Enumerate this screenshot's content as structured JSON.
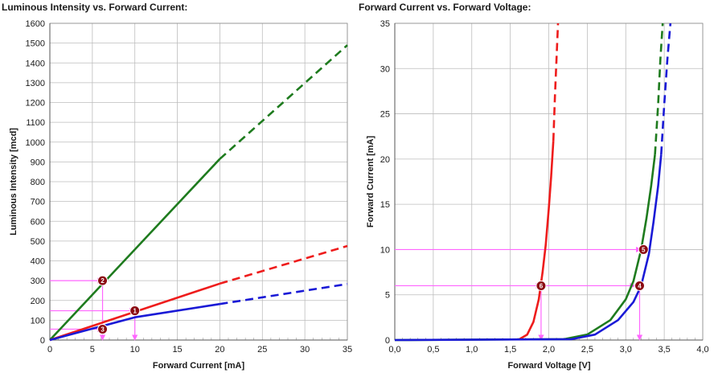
{
  "colors": {
    "green": "#1e7b1e",
    "red": "#ee1c1c",
    "blue": "#1a1ad6",
    "guide": "#ff66ff",
    "marker": "#8b0a12",
    "grid": "#bdbdbd"
  },
  "chart_data": [
    {
      "type": "line",
      "title": "Luminous Intensity vs. Forward Current:",
      "xlabel": "Forward Current [mA]",
      "ylabel": "Luminous Intensity [mcd]",
      "xlim": [
        0,
        35
      ],
      "ylim": [
        0,
        1600
      ],
      "xticks": [
        0,
        5,
        10,
        15,
        20,
        25,
        30,
        35
      ],
      "xtick_labels": [
        "0",
        "5",
        "10",
        "15",
        "20",
        "25",
        "30",
        "35"
      ],
      "yticks": [
        0,
        100,
        200,
        300,
        400,
        500,
        600,
        700,
        800,
        900,
        1000,
        1100,
        1200,
        1300,
        1400,
        1500,
        1600
      ],
      "ytick_labels": [
        "0",
        "100",
        "200",
        "300",
        "400",
        "500",
        "600",
        "700",
        "800",
        "900",
        "1000",
        "1100",
        "1200",
        "1300",
        "1400",
        "1500",
        "1600"
      ],
      "grid": true,
      "series": [
        {
          "color": "green",
          "solid": [
            [
              0,
              0
            ],
            [
              20,
              915
            ]
          ],
          "dashed": [
            [
              20,
              915
            ],
            [
              35,
              1490
            ]
          ]
        },
        {
          "color": "red",
          "solid": [
            [
              0,
              0
            ],
            [
              20,
              285
            ]
          ],
          "dashed": [
            [
              20,
              285
            ],
            [
              35,
              475
            ]
          ]
        },
        {
          "color": "blue",
          "solid": [
            [
              0,
              0
            ],
            [
              10,
              115
            ],
            [
              20,
              182
            ]
          ],
          "dashed": [
            [
              20,
              182
            ],
            [
              35,
              283
            ]
          ]
        }
      ],
      "guides": [
        {
          "from": [
            0,
            300
          ],
          "to": [
            6.2,
            300
          ],
          "arrow": true
        },
        {
          "from": [
            6.2,
            300
          ],
          "to": [
            6.2,
            0
          ],
          "arrow": true
        },
        {
          "from": [
            0,
            148
          ],
          "to": [
            10,
            148
          ],
          "arrow": true
        },
        {
          "from": [
            10,
            148
          ],
          "to": [
            10,
            0
          ],
          "arrow": true
        },
        {
          "from": [
            0,
            55
          ],
          "to": [
            6.2,
            55
          ],
          "arrow": true
        }
      ],
      "markers": [
        {
          "label": "1",
          "x": 10,
          "y": 148
        },
        {
          "label": "2",
          "x": 6.2,
          "y": 300
        },
        {
          "label": "3",
          "x": 6.2,
          "y": 55
        }
      ]
    },
    {
      "type": "line",
      "title": "Forward Current vs. Forward Voltage:",
      "xlabel": "Forward Voltage [V]",
      "ylabel": "Forward Current [mA]",
      "xlim": [
        0,
        4
      ],
      "ylim": [
        0,
        35
      ],
      "xticks": [
        0,
        0.5,
        1,
        1.5,
        2,
        2.5,
        3,
        3.5,
        4
      ],
      "xtick_labels": [
        "0,0",
        "0,5",
        "1,0",
        "1,5",
        "2,0",
        "2,5",
        "3,0",
        "3,5",
        "4,0"
      ],
      "yticks": [
        0,
        5,
        10,
        15,
        20,
        25,
        30,
        35
      ],
      "ytick_labels": [
        "0",
        "5",
        "10",
        "15",
        "20",
        "25",
        "30",
        "35"
      ],
      "grid": true,
      "series": [
        {
          "color": "red",
          "solid": [
            [
              1.62,
              0.1
            ],
            [
              1.72,
              0.6
            ],
            [
              1.8,
              2
            ],
            [
              1.87,
              4.5
            ],
            [
              1.92,
              7.5
            ],
            [
              1.96,
              10.5
            ],
            [
              2.0,
              14.5
            ],
            [
              2.03,
              18
            ],
            [
              2.06,
              22
            ]
          ],
          "dashed": [
            [
              2.06,
              22
            ],
            [
              2.08,
              27
            ],
            [
              2.1,
              31
            ],
            [
              2.12,
              35
            ]
          ]
        },
        {
          "color": "green",
          "solid": [
            [
              0,
              0
            ],
            [
              2.2,
              0.1
            ],
            [
              2.5,
              0.6
            ],
            [
              2.8,
              2.2
            ],
            [
              3.0,
              4.5
            ],
            [
              3.1,
              6.5
            ],
            [
              3.2,
              10
            ],
            [
              3.27,
              13.5
            ],
            [
              3.33,
              17
            ],
            [
              3.38,
              20.5
            ]
          ],
          "dashed": [
            [
              3.38,
              20.5
            ],
            [
              3.42,
              26
            ],
            [
              3.45,
              31
            ],
            [
              3.48,
              35
            ]
          ]
        },
        {
          "color": "blue",
          "solid": [
            [
              0,
              0
            ],
            [
              2.3,
              0.1
            ],
            [
              2.6,
              0.6
            ],
            [
              2.9,
              2.2
            ],
            [
              3.1,
              4.2
            ],
            [
              3.2,
              6
            ],
            [
              3.3,
              9.5
            ],
            [
              3.36,
              13
            ],
            [
              3.42,
              17
            ],
            [
              3.46,
              20.5
            ]
          ],
          "dashed": [
            [
              3.46,
              20.5
            ],
            [
              3.5,
              26
            ],
            [
              3.54,
              31
            ],
            [
              3.58,
              35
            ]
          ]
        }
      ],
      "guides": [
        {
          "from": [
            0,
            10
          ],
          "to": [
            3.2,
            10
          ],
          "arrow": true
        },
        {
          "from": [
            0,
            6
          ],
          "to": [
            1.9,
            6
          ],
          "arrow": true
        },
        {
          "from": [
            1.9,
            6
          ],
          "to": [
            3.12,
            6
          ],
          "arrow": true
        },
        {
          "from": [
            1.9,
            6
          ],
          "to": [
            1.9,
            0
          ],
          "arrow": true
        },
        {
          "from": [
            3.18,
            6
          ],
          "to": [
            3.18,
            0
          ],
          "arrow": true
        }
      ],
      "markers": [
        {
          "label": "4",
          "x": 3.18,
          "y": 6
        },
        {
          "label": "5",
          "x": 3.23,
          "y": 10
        },
        {
          "label": "6",
          "x": 1.9,
          "y": 6
        }
      ]
    }
  ]
}
